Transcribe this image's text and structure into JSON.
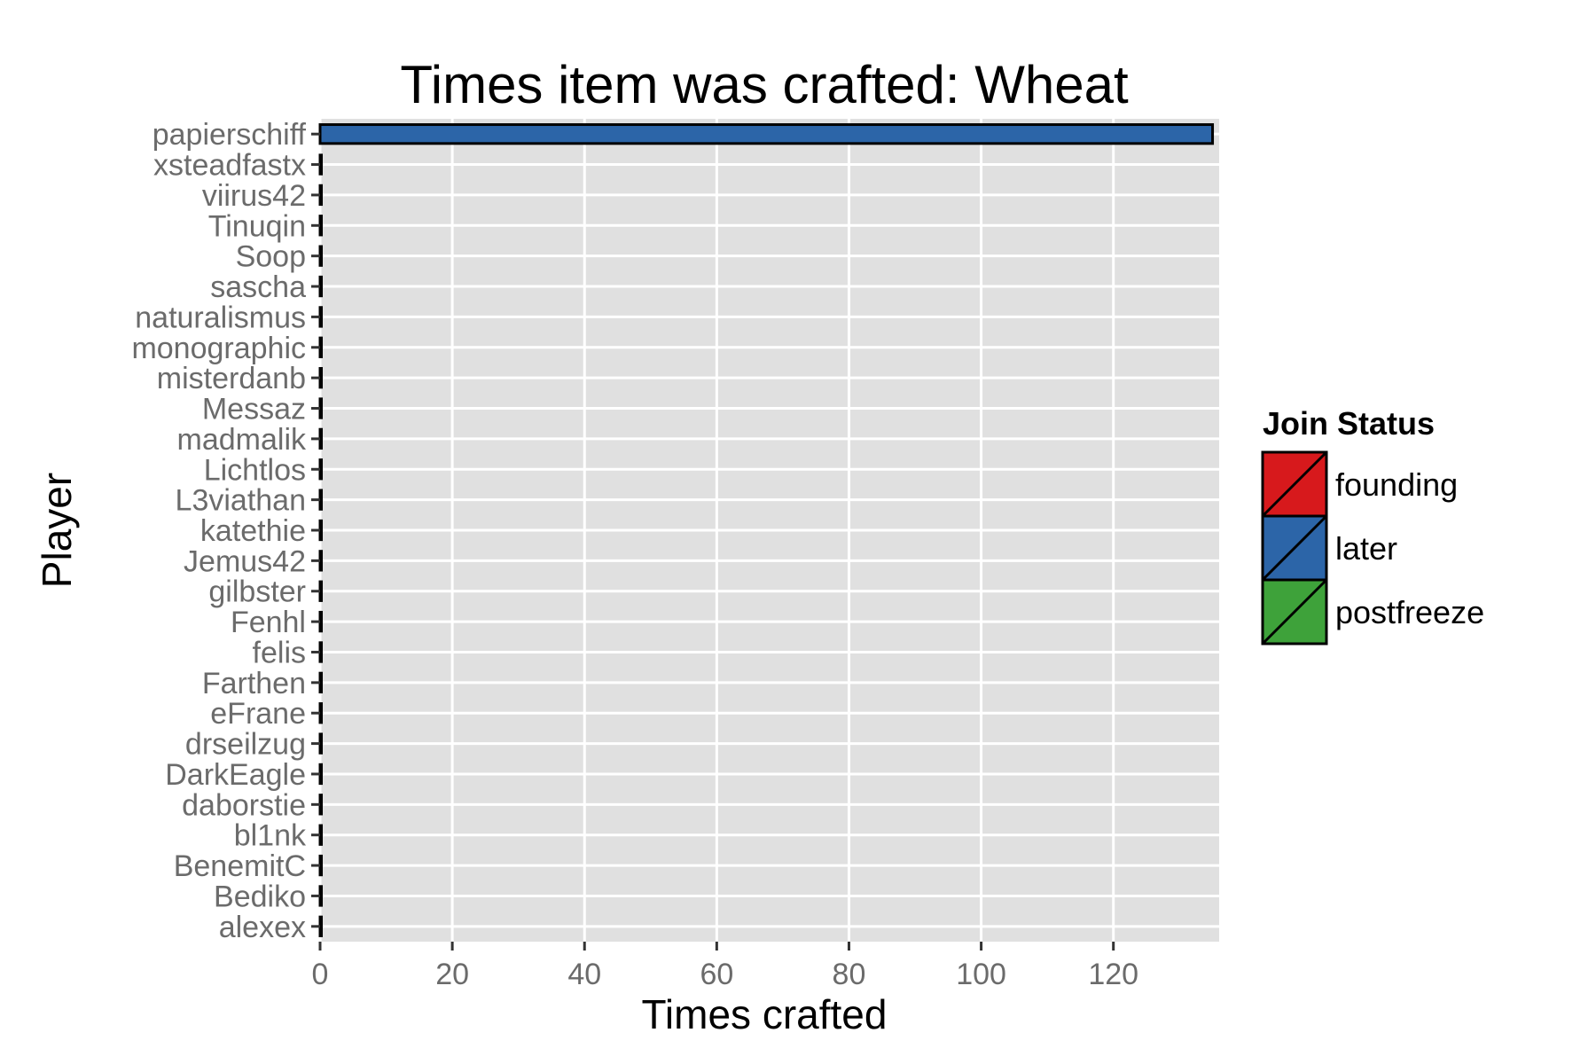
{
  "chart_data": {
    "type": "bar",
    "orientation": "horizontal",
    "title": "Times item was crafted: Wheat",
    "xlabel": "Times crafted",
    "ylabel": "Player",
    "xlim": [
      0,
      136
    ],
    "xticks": [
      0,
      20,
      40,
      60,
      80,
      100,
      120
    ],
    "xtick_labels": [
      "0",
      "20",
      "40",
      "60",
      "80",
      "100",
      "120"
    ],
    "grid": true,
    "categories": [
      "papierschiff",
      "xsteadfastx",
      "viirus42",
      "Tinuqin",
      "Soop",
      "sascha",
      "naturalismus",
      "monographic",
      "misterdanb",
      "Messaz",
      "madmalik",
      "Lichtlos",
      "L3viathan",
      "katethie",
      "Jemus42",
      "gilbster",
      "Fenhl",
      "felis",
      "Farthen",
      "eFrane",
      "drseilzug",
      "DarkEagle",
      "daborstie",
      "bl1nk",
      "BenemitC",
      "Bediko",
      "alexex"
    ],
    "values": [
      135,
      0,
      0,
      0,
      0,
      0,
      0,
      0,
      0,
      0,
      0,
      0,
      0,
      0,
      0,
      0,
      0,
      0,
      0,
      0,
      0,
      0,
      0,
      0,
      0,
      0,
      0
    ],
    "status": [
      "later",
      "later",
      "later",
      "later",
      "later",
      "later",
      "later",
      "later",
      "later",
      "later",
      "later",
      "later",
      "later",
      "later",
      "later",
      "later",
      "later",
      "later",
      "later",
      "later",
      "later",
      "later",
      "later",
      "later",
      "later",
      "later",
      "later"
    ],
    "legend": {
      "title": "Join Status",
      "position": "right",
      "entries": [
        {
          "label": "founding",
          "color": "#d7191c"
        },
        {
          "label": "later",
          "color": "#2c65a8"
        },
        {
          "label": "postfreeze",
          "color": "#3ea23a"
        }
      ]
    },
    "colors": {
      "panel_background": "#e0e0e0",
      "grid": "#ffffff",
      "bar_outline": "#000000"
    }
  }
}
